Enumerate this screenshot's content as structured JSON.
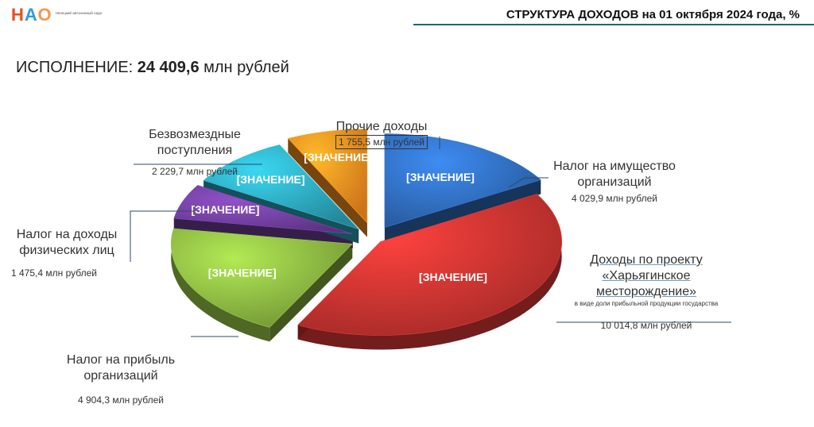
{
  "logo": {
    "text": "НАО",
    "subtitle": "Ненецкий автономный округ"
  },
  "header": {
    "title": "СТРУКТУРА ДОХОДОВ на 01 октября 2024 года, %"
  },
  "summary": {
    "label": "ИСПОЛНЕНИЕ: ",
    "value": "24 409,6",
    "unit": " млн рублей"
  },
  "chart_data": {
    "type": "pie",
    "title": "СТРУКТУРА ДОХОДОВ на 01 октября 2024 года, %",
    "series": [
      {
        "name": "Налог на имущество организаций",
        "amount_mln_rub": 4029.9,
        "share_pct": 16.5,
        "amount_text": "4 029,9 млн рублей",
        "label": "[ЗНАЧЕНИЕ]",
        "color": "#2e68b4"
      },
      {
        "name": "Доходы по проекту «Харьягинское месторождение»",
        "note": "в виде доли прибыльной продукции государства",
        "amount_mln_rub": 10014.8,
        "share_pct": 41.0,
        "amount_text": "10 014,8 млн рублей",
        "label": "[ЗНАЧЕНИЕ]",
        "color": "#c0312e"
      },
      {
        "name": "Налог на прибыль организаций",
        "amount_mln_rub": 4904.3,
        "share_pct": 20.1,
        "amount_text": "4 904,3 млн рублей",
        "label": "[ЗНАЧЕНИЕ]",
        "color": "#84ad3e"
      },
      {
        "name": "Налог на доходы физических лиц",
        "amount_mln_rub": 1475.4,
        "share_pct": 6.0,
        "amount_text": "1 475,4 млн рублей",
        "label": "[ЗНАЧЕНИЕ]",
        "color": "#6b3c96"
      },
      {
        "name": "Безвозмездные поступления",
        "amount_mln_rub": 2229.7,
        "share_pct": 9.1,
        "amount_text": "2 229,7 млн рублей",
        "label": "[ЗНАЧЕНИЕ]",
        "color": "#2b9fb3"
      },
      {
        "name": "Прочие доходы",
        "amount_mln_rub": 1755.5,
        "share_pct": 7.2,
        "amount_text": "1 755,5 млн рублей",
        "label": "[ЗНАЧЕНИЕ]",
        "color": "#f0891e"
      }
    ],
    "style": {
      "3d": true,
      "exploded": true
    }
  }
}
